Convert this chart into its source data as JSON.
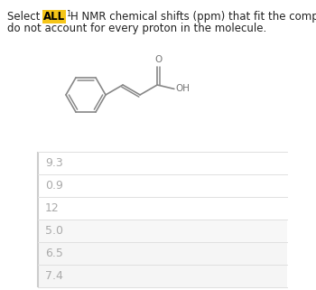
{
  "title_before_all": "Select ",
  "title_all": "ALL",
  "title_superscript": "1",
  "title_after_sup": "H NMR chemical shifts (ppm) that fit the compound below. The choices",
  "title_line2": "do not account for every proton in the molecule.",
  "all_bg_color": "#f5c518",
  "all_text_color": "#000000",
  "title_text_color": "#222222",
  "title_fontsize": 8.5,
  "choices": [
    "9.3",
    "0.9",
    "12",
    "5.0",
    "6.5",
    "7.4"
  ],
  "choice_text_color": "#aaaaaa",
  "choice_fontsize": 9.0,
  "choice_bg_colors": [
    "#ffffff",
    "#ffffff",
    "#ffffff",
    "#f7f7f7",
    "#f5f5f5",
    "#f5f5f5"
  ],
  "divider_color": "#e0e0e0",
  "left_border_color": "#cccccc",
  "background_color": "#ffffff",
  "mol_line_color": "#888888",
  "mol_lw": 1.2
}
